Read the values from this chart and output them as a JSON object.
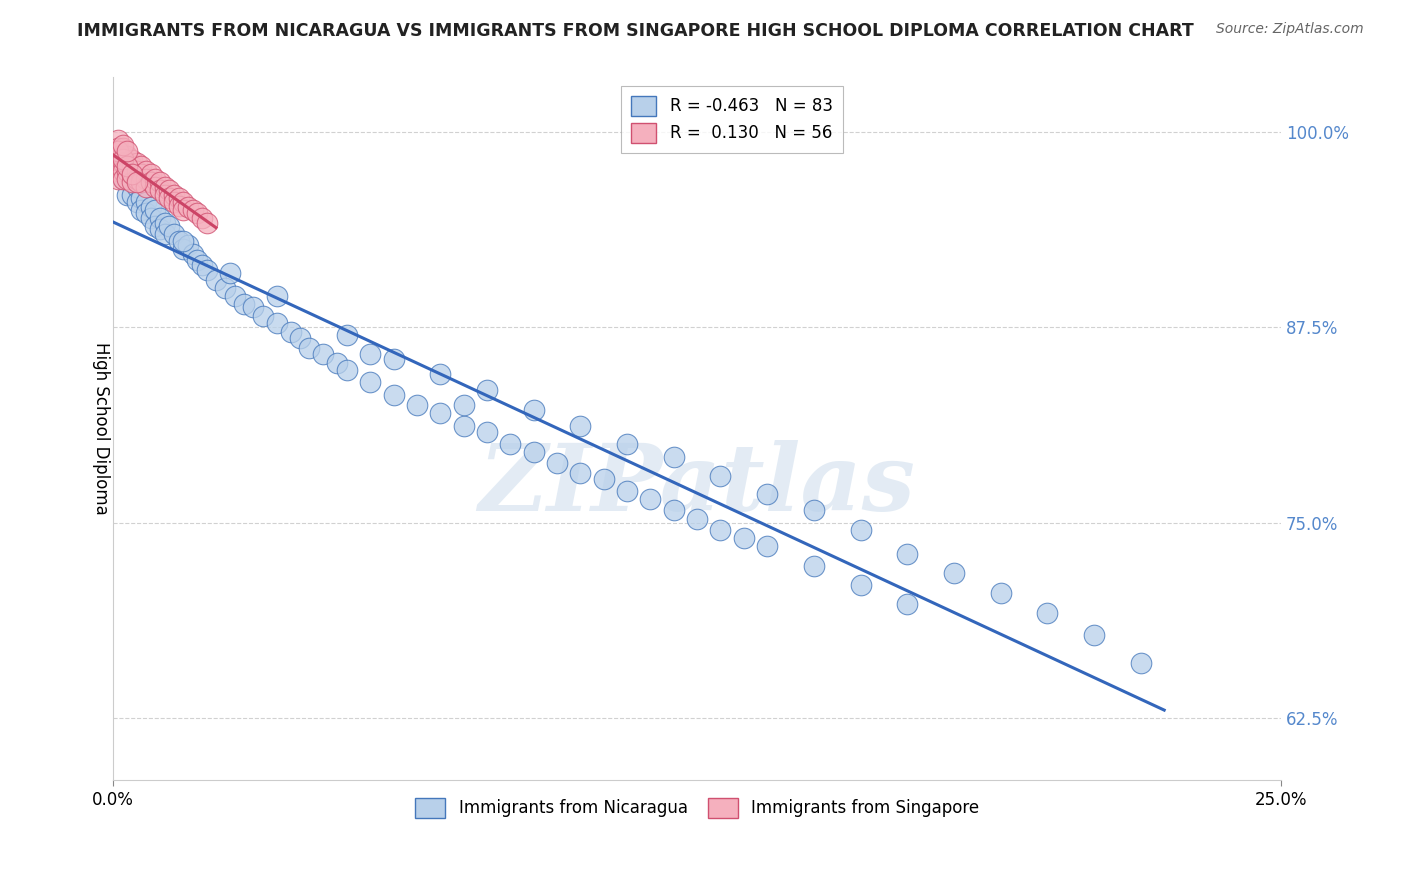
{
  "title": "IMMIGRANTS FROM NICARAGUA VS IMMIGRANTS FROM SINGAPORE HIGH SCHOOL DIPLOMA CORRELATION CHART",
  "source": "Source: ZipAtlas.com",
  "ylabel": "High School Diploma",
  "ytick_values": [
    0.625,
    0.75,
    0.875,
    1.0
  ],
  "ytick_labels": [
    "62.5%",
    "75.0%",
    "87.5%",
    "100.0%"
  ],
  "xlim": [
    0.0,
    0.25
  ],
  "ylim": [
    0.585,
    1.035
  ],
  "legend_blue_r": "-0.463",
  "legend_blue_n": "83",
  "legend_pink_r": "0.130",
  "legend_pink_n": "56",
  "blue_fill": "#b8d0ea",
  "blue_edge": "#4477bb",
  "pink_fill": "#f5b0be",
  "pink_edge": "#d05070",
  "blue_line": "#3366bb",
  "pink_line": "#cc4466",
  "watermark": "ZIPatlas",
  "nic_x": [
    0.002,
    0.003,
    0.004,
    0.005,
    0.005,
    0.006,
    0.006,
    0.007,
    0.007,
    0.008,
    0.008,
    0.009,
    0.009,
    0.01,
    0.01,
    0.011,
    0.011,
    0.012,
    0.013,
    0.014,
    0.015,
    0.016,
    0.017,
    0.018,
    0.019,
    0.02,
    0.022,
    0.024,
    0.026,
    0.028,
    0.03,
    0.032,
    0.035,
    0.038,
    0.04,
    0.042,
    0.045,
    0.048,
    0.05,
    0.055,
    0.06,
    0.065,
    0.07,
    0.075,
    0.08,
    0.085,
    0.09,
    0.095,
    0.1,
    0.105,
    0.11,
    0.115,
    0.12,
    0.125,
    0.13,
    0.135,
    0.14,
    0.15,
    0.16,
    0.17,
    0.05,
    0.06,
    0.07,
    0.08,
    0.09,
    0.1,
    0.11,
    0.12,
    0.13,
    0.14,
    0.15,
    0.16,
    0.17,
    0.18,
    0.19,
    0.2,
    0.21,
    0.22,
    0.015,
    0.025,
    0.035,
    0.055,
    0.075
  ],
  "nic_y": [
    0.97,
    0.96,
    0.96,
    0.965,
    0.955,
    0.958,
    0.95,
    0.955,
    0.948,
    0.952,
    0.945,
    0.95,
    0.94,
    0.945,
    0.938,
    0.942,
    0.935,
    0.94,
    0.935,
    0.93,
    0.925,
    0.928,
    0.922,
    0.918,
    0.915,
    0.912,
    0.905,
    0.9,
    0.895,
    0.89,
    0.888,
    0.882,
    0.878,
    0.872,
    0.868,
    0.862,
    0.858,
    0.852,
    0.848,
    0.84,
    0.832,
    0.825,
    0.82,
    0.812,
    0.808,
    0.8,
    0.795,
    0.788,
    0.782,
    0.778,
    0.77,
    0.765,
    0.758,
    0.752,
    0.745,
    0.74,
    0.735,
    0.722,
    0.71,
    0.698,
    0.87,
    0.855,
    0.845,
    0.835,
    0.822,
    0.812,
    0.8,
    0.792,
    0.78,
    0.768,
    0.758,
    0.745,
    0.73,
    0.718,
    0.705,
    0.692,
    0.678,
    0.66,
    0.93,
    0.91,
    0.895,
    0.858,
    0.825
  ],
  "sing_x": [
    0.001,
    0.001,
    0.001,
    0.001,
    0.001,
    0.001,
    0.002,
    0.002,
    0.002,
    0.002,
    0.002,
    0.003,
    0.003,
    0.003,
    0.003,
    0.004,
    0.004,
    0.004,
    0.004,
    0.005,
    0.005,
    0.005,
    0.006,
    0.006,
    0.006,
    0.007,
    0.007,
    0.007,
    0.008,
    0.008,
    0.009,
    0.009,
    0.01,
    0.01,
    0.011,
    0.011,
    0.012,
    0.012,
    0.013,
    0.013,
    0.014,
    0.014,
    0.015,
    0.015,
    0.016,
    0.017,
    0.018,
    0.019,
    0.02,
    0.001,
    0.002,
    0.003,
    0.004,
    0.005,
    0.002,
    0.003
  ],
  "sing_y": [
    0.995,
    0.99,
    0.985,
    0.98,
    0.975,
    0.97,
    0.99,
    0.985,
    0.98,
    0.975,
    0.97,
    0.985,
    0.98,
    0.975,
    0.97,
    0.982,
    0.978,
    0.973,
    0.968,
    0.98,
    0.975,
    0.97,
    0.978,
    0.973,
    0.968,
    0.975,
    0.97,
    0.965,
    0.973,
    0.968,
    0.97,
    0.965,
    0.968,
    0.963,
    0.965,
    0.96,
    0.963,
    0.958,
    0.96,
    0.955,
    0.958,
    0.953,
    0.955,
    0.95,
    0.952,
    0.95,
    0.948,
    0.945,
    0.942,
    0.988,
    0.983,
    0.978,
    0.973,
    0.968,
    0.992,
    0.988
  ]
}
